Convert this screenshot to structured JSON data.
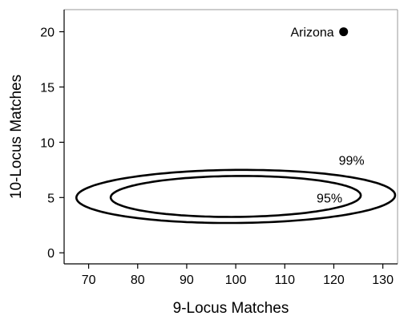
{
  "chart_data": {
    "type": "scatter",
    "title": "",
    "xlabel": "9-Locus Matches",
    "ylabel": "10-Locus Matches",
    "xlim": [
      65,
      133
    ],
    "ylim": [
      -1,
      22
    ],
    "xticks": [
      70,
      80,
      90,
      100,
      110,
      120,
      130
    ],
    "yticks": [
      0,
      5,
      10,
      15,
      20
    ],
    "grid": false,
    "points": [
      {
        "label": "Arizona",
        "x": 122,
        "y": 20
      }
    ],
    "contours": [
      {
        "label": "99%",
        "cx": 100,
        "cy": 5.1,
        "rx": 32.5,
        "ry": 2.4,
        "angle_deg": 6.5,
        "label_x": 121,
        "label_y": 8.4
      },
      {
        "label": "95%",
        "cx": 100,
        "cy": 5.1,
        "rx": 25.5,
        "ry": 1.85,
        "angle_deg": 6.8,
        "label_x": 116.5,
        "label_y": 5.0
      }
    ]
  }
}
